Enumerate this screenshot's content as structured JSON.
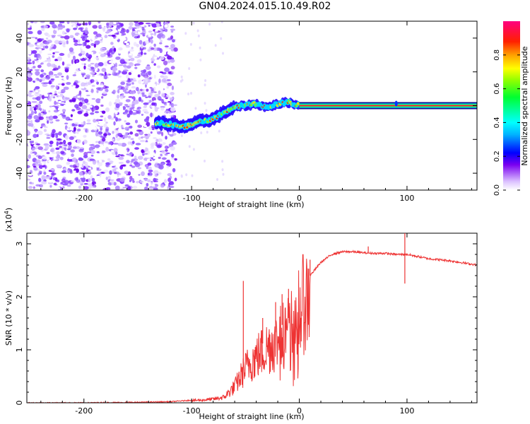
{
  "title": "GN04.2024.015.10.49.R02",
  "chart_data": [
    {
      "type": "heatmap",
      "xlabel": "Height of straight line (km)",
      "ylabel": "Frequency (Hz)",
      "xlim": [
        -253,
        165
      ],
      "ylim": [
        -50,
        50
      ],
      "xticks": [
        -200,
        -100,
        0,
        100
      ],
      "xtick_labels": [
        "-200",
        "-100",
        "0",
        "100"
      ],
      "yticks": [
        -40,
        -20,
        0,
        20,
        40
      ],
      "ytick_labels": [
        "-40",
        "-20",
        "0",
        "20",
        "40"
      ],
      "colorbar": {
        "label": "Normalized spectral amplitude",
        "range": [
          0,
          1
        ],
        "ticks": [
          0.0,
          0.2,
          0.4,
          0.6,
          0.8
        ],
        "tick_labels": [
          "0.0",
          "0.2",
          "0.4",
          "0.6",
          "0.8"
        ]
      },
      "noise_region_x": [
        -253,
        -118
      ],
      "signal_track": {
        "x": [
          -133,
          -120,
          -110,
          -100,
          -90,
          -80,
          -70,
          -60,
          -50,
          -40,
          -30,
          -20,
          -10,
          0,
          10,
          20,
          50,
          80,
          100,
          130,
          165
        ],
        "y": [
          -10,
          -11,
          -13,
          -11,
          -9,
          -8,
          -4,
          -1,
          0,
          1,
          -1,
          1,
          2,
          0,
          0,
          0,
          0,
          0,
          0,
          0,
          0
        ]
      }
    },
    {
      "type": "line",
      "xlabel": "Height of straight line (km)",
      "ylabel": "SNR (10 * v/v)",
      "y_multiplier": "(x10^4)",
      "xlim": [
        -253,
        165
      ],
      "ylim": [
        0,
        3.2
      ],
      "xticks": [
        -200,
        -100,
        0,
        100
      ],
      "xtick_labels": [
        "-200",
        "-100",
        "0",
        "100"
      ],
      "yticks": [
        0,
        1,
        2,
        3
      ],
      "ytick_labels": [
        "0",
        "1",
        "2",
        "3"
      ],
      "color": "#ee3333",
      "series": [
        {
          "x": [
            -253,
            -200,
            -150,
            -120,
            -100,
            -90,
            -80,
            -70,
            -60,
            -55,
            -50,
            -45,
            -40,
            -35,
            -30,
            -25,
            -20,
            -15,
            -10,
            -5,
            0,
            5,
            10,
            20,
            30,
            40,
            50,
            60,
            70,
            80,
            90,
            100,
            110,
            120,
            140,
            165
          ],
          "values": [
            0.0,
            0.0,
            0.01,
            0.02,
            0.05,
            0.06,
            0.08,
            0.12,
            0.35,
            0.55,
            0.75,
            0.9,
            1.0,
            1.1,
            1.2,
            1.3,
            1.35,
            1.5,
            1.6,
            1.75,
            2.0,
            2.2,
            2.4,
            2.65,
            2.8,
            2.85,
            2.85,
            2.83,
            2.82,
            2.82,
            2.8,
            2.8,
            2.76,
            2.72,
            2.68,
            2.6
          ]
        }
      ],
      "spikes": [
        {
          "x": -52,
          "value": 2.3
        },
        {
          "x": -34,
          "value": 1.6
        },
        {
          "x": -22,
          "value": 1.9
        },
        {
          "x": -16,
          "value": 2.05
        },
        {
          "x": -10,
          "value": 2.15
        },
        {
          "x": 10,
          "value": 2.7
        },
        {
          "x": 64,
          "value": 2.95
        },
        {
          "x": 98,
          "value": 3.2
        },
        {
          "x": 98,
          "value": 2.25
        }
      ]
    }
  ]
}
